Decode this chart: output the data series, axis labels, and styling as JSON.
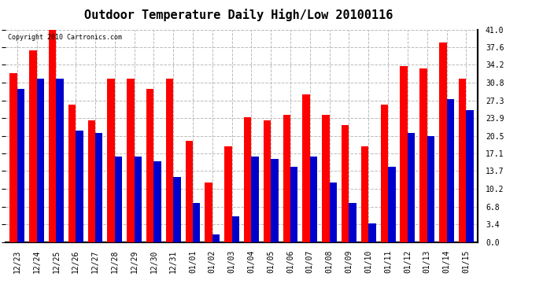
{
  "title": "Outdoor Temperature Daily High/Low 20100116",
  "copyright": "Copyright 2010 Cartronics.com",
  "dates": [
    "12/23",
    "12/24",
    "12/25",
    "12/26",
    "12/27",
    "12/28",
    "12/29",
    "12/30",
    "12/31",
    "01/01",
    "01/02",
    "01/03",
    "01/04",
    "01/05",
    "01/06",
    "01/07",
    "01/08",
    "01/09",
    "01/10",
    "01/11",
    "01/12",
    "01/13",
    "01/14",
    "01/15"
  ],
  "high_vals": [
    32.5,
    37.0,
    41.0,
    26.5,
    23.5,
    31.5,
    31.5,
    29.5,
    31.5,
    19.5,
    11.5,
    18.5,
    24.0,
    23.5,
    24.5,
    28.5,
    24.5,
    22.5,
    18.5,
    26.5,
    34.0,
    33.5,
    38.5,
    31.5
  ],
  "low_vals": [
    29.5,
    31.5,
    31.5,
    21.5,
    21.0,
    16.5,
    16.5,
    15.5,
    12.5,
    7.5,
    1.5,
    5.0,
    16.5,
    16.0,
    14.5,
    16.5,
    11.5,
    7.5,
    3.5,
    14.5,
    21.0,
    20.5,
    27.5,
    25.5
  ],
  "high_color": "#ff0000",
  "low_color": "#0000cc",
  "bg_color": "#ffffff",
  "grid_color": "#bbbbbb",
  "yticks": [
    0.0,
    3.4,
    6.8,
    10.2,
    13.7,
    17.1,
    20.5,
    23.9,
    27.3,
    30.8,
    34.2,
    37.6,
    41.0
  ],
  "ylim": [
    0,
    41.0
  ],
  "bar_width": 0.38,
  "title_fontsize": 11,
  "tick_fontsize": 7,
  "copyright_fontsize": 6
}
